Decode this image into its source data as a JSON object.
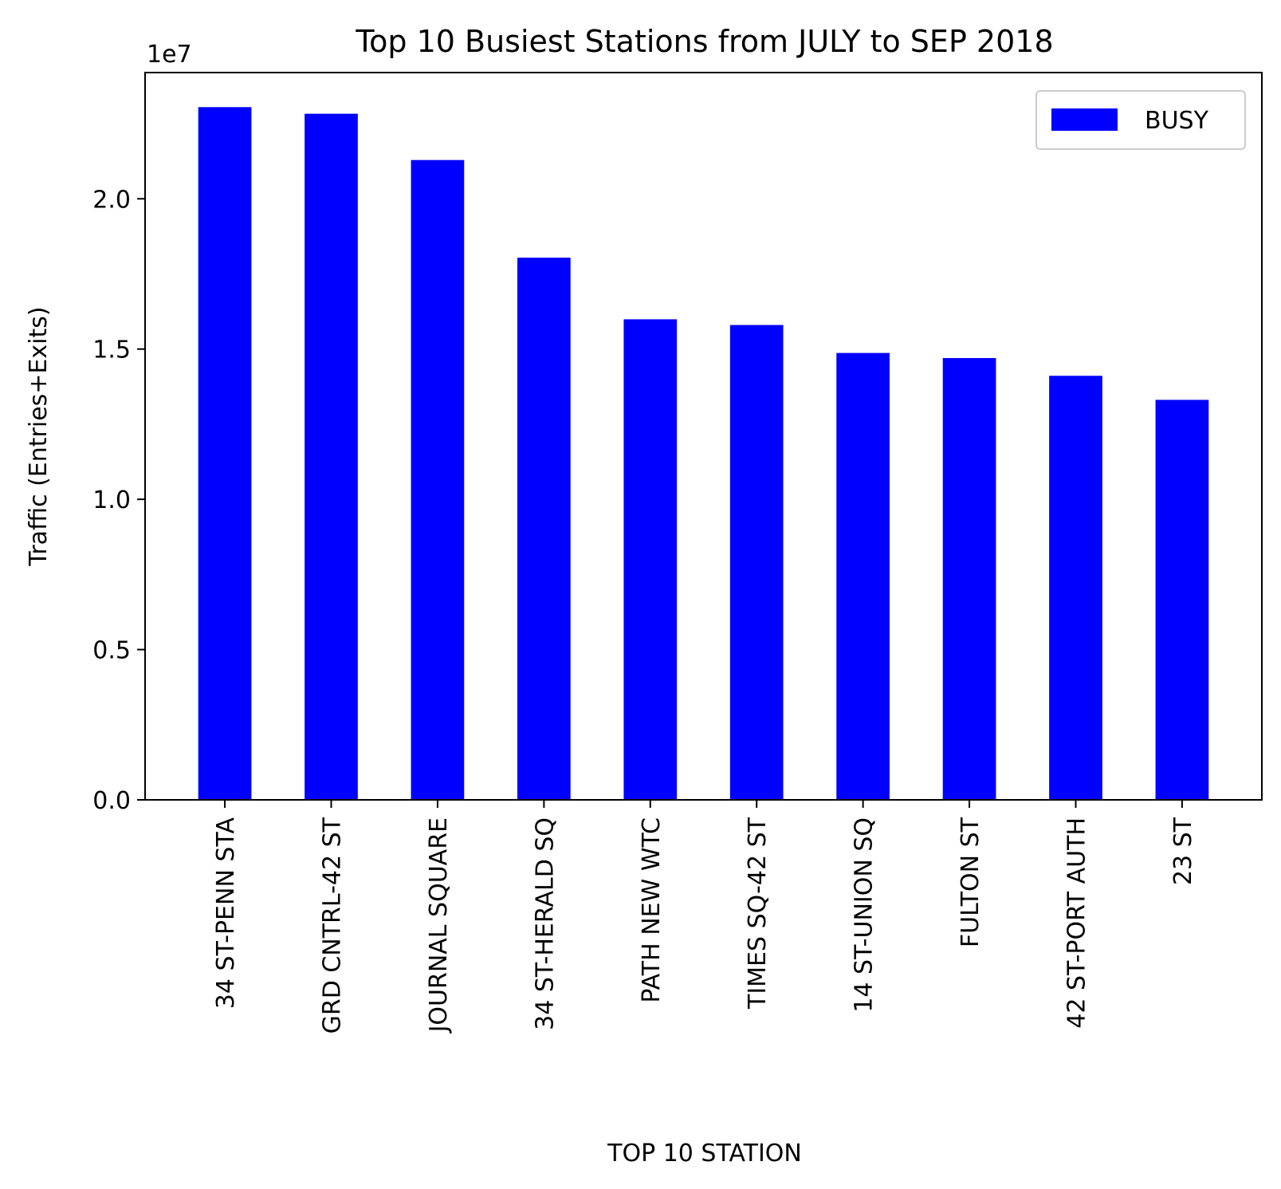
{
  "chart_data": {
    "type": "bar",
    "title": "Top 10 Busiest Stations from JULY to SEP 2018",
    "xlabel": "TOP 10 STATION",
    "ylabel": "Traffic (Entries+Exits)",
    "y_offset_label": "1e7",
    "categories": [
      "34 ST-PENN STA",
      "GRD CNTRL-42 ST",
      "JOURNAL SQUARE",
      "34 ST-HERALD SQ",
      "PATH NEW WTC",
      "TIMES SQ-42 ST",
      "14 ST-UNION SQ",
      "FULTON ST",
      "42 ST-PORT AUTH",
      "23 ST"
    ],
    "series": [
      {
        "name": "BUSY",
        "color": "#0000ff",
        "values": [
          23050000,
          22830000,
          21290000,
          18040000,
          15990000,
          15800000,
          14870000,
          14700000,
          14110000,
          13310000
        ]
      }
    ],
    "ylim": [
      0,
      24200000
    ],
    "yticks": [
      0,
      5000000,
      10000000,
      15000000,
      20000000
    ],
    "ytick_labels": [
      "0.0",
      "0.5",
      "1.0",
      "1.5",
      "2.0"
    ],
    "legend_position": "upper right",
    "grid": false
  }
}
